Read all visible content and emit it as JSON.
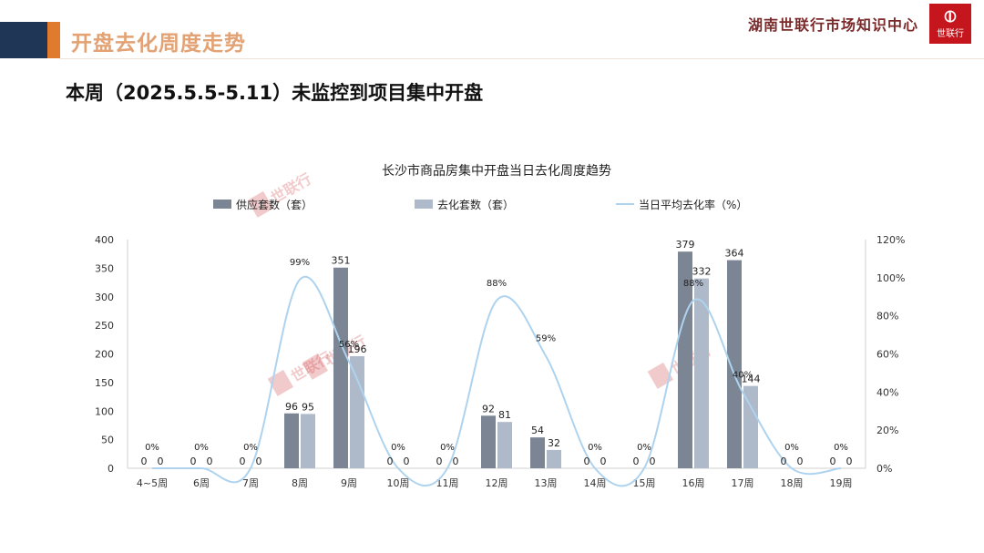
{
  "header": {
    "title": "开盘去化周度走势",
    "brand": "湖南世联行市场知识中心",
    "logo_text": "世联行"
  },
  "subtitle": "本周（2025.5.5-5.11）未监控到项目集中开盘",
  "colors": {
    "supply": "#7b8593",
    "sold": "#aeb9ca",
    "rate": "#aed3ef",
    "header_dark": "#1f3656",
    "header_orange": "#e07b2e",
    "brand_red": "#c4161c"
  },
  "watermark": "世联行",
  "chart_data": {
    "type": "bar",
    "title": "长沙市商品房集中开盘当日去化周度趋势",
    "categories": [
      "4~5周",
      "6周",
      "7周",
      "8周",
      "9周",
      "10周",
      "11周",
      "12周",
      "13周",
      "14周",
      "15周",
      "16周",
      "17周",
      "18周",
      "19周"
    ],
    "series": [
      {
        "name": "供应套数（套）",
        "type": "bar",
        "axis": "left",
        "values": [
          0,
          0,
          0,
          96,
          351,
          0,
          0,
          92,
          54,
          0,
          0,
          379,
          364,
          0,
          0
        ],
        "labels": [
          "0",
          "0",
          "0",
          "96",
          "351",
          "0",
          "0",
          "92",
          "54",
          "0",
          "0",
          "379",
          "364",
          "0",
          "0"
        ]
      },
      {
        "name": "去化套数（套）",
        "type": "bar",
        "axis": "left",
        "values": [
          0,
          0,
          0,
          95,
          196,
          0,
          0,
          81,
          32,
          0,
          0,
          332,
          144,
          0,
          0
        ],
        "labels": [
          "0",
          "0",
          "0",
          "95",
          "196",
          "0",
          "0",
          "81",
          "32",
          "0",
          "0",
          "332",
          "144",
          "0",
          "0"
        ]
      },
      {
        "name": "当日平均去化率（%）",
        "type": "line",
        "axis": "right",
        "values": [
          0,
          0,
          0,
          99,
          56,
          0,
          0,
          88,
          59,
          0,
          0,
          88,
          40,
          0,
          0
        ],
        "labels": [
          "0%",
          "0%",
          "0%",
          "99%",
          "56%",
          "0%",
          "0%",
          "88%",
          "59%",
          "0%",
          "0%",
          "88%",
          "40%",
          "0%",
          "0%"
        ]
      }
    ],
    "y_left": {
      "min": 0,
      "max": 400,
      "ticks": [
        "0",
        "50",
        "100",
        "150",
        "200",
        "250",
        "300",
        "350",
        "400"
      ]
    },
    "y_right": {
      "min": 0,
      "max": 120,
      "ticks": [
        "0%",
        "20%",
        "40%",
        "60%",
        "80%",
        "100%",
        "120%"
      ]
    },
    "legend_position": "top",
    "grid": false
  }
}
